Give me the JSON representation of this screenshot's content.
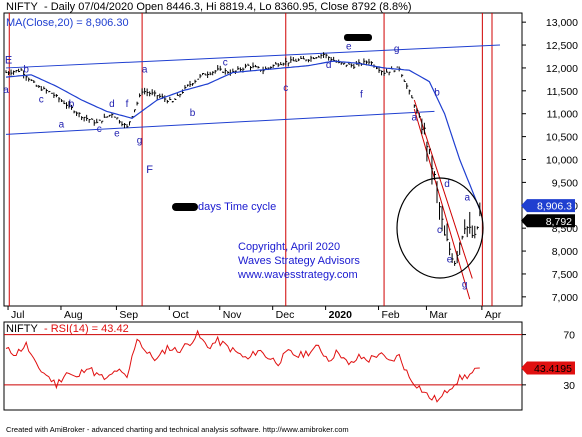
{
  "header": {
    "symbol": "NIFTY",
    "info": " - Daily 07/04/2020 Open 8446.3, Hi 8819.4, Lo 8360.95, Close 8792 (8.8%)",
    "ma_label": "MA(Close,20) = 8,906.30"
  },
  "rsi_header": {
    "symbol": "NIFTY",
    "label": " - RSI(14) = 43.42"
  },
  "annotation": {
    "cycle_text": "days Time cycle",
    "copyright": "Copyright, April 2020",
    "company": "Waves Strategy Advisors",
    "website": "www.wavesstrategy.com"
  },
  "footer": "Created with AmiBroker - advanced charting and technical analysis software. http://www.amibroker.com",
  "colors": {
    "price": "#000000",
    "ma": "#1f3fd0",
    "rsi": "#e01010",
    "cycle": "#d00000",
    "channel": "#1f3fd0",
    "wave_label": "#2020b0",
    "annotation": "#1a1ad0"
  },
  "chart_data": [
    {
      "type": "line",
      "title": "NIFTY - Daily 07/04/2020 Open 8446.3, Hi 8819.4, Lo 8360.95, Close 8792 (8.8%)",
      "ylim": [
        6800,
        13200
      ],
      "y_ticks": [
        7000,
        7500,
        8000,
        8500,
        9000,
        9500,
        10000,
        10500,
        11000,
        11500,
        12000,
        12500,
        13000
      ],
      "y_tick_labels": [
        "7,000",
        "7,500",
        "8,000",
        "8,500",
        "9,000",
        "9,500",
        "10,000",
        "10,500",
        "11,000",
        "11,500",
        "12,000",
        "12,500",
        "13,000"
      ],
      "x_labels": [
        {
          "label": "Jul",
          "index": 2
        },
        {
          "label": "Aug",
          "index": 23
        },
        {
          "label": "Sep",
          "index": 45
        },
        {
          "label": "Oct",
          "index": 66
        },
        {
          "label": "Nov",
          "index": 86
        },
        {
          "label": "Dec",
          "index": 107
        },
        {
          "label": "2020",
          "index": 128
        },
        {
          "label": "Feb",
          "index": 149
        },
        {
          "label": "Mar",
          "index": 168
        },
        {
          "label": "Apr",
          "index": 190
        }
      ],
      "series": [
        {
          "name": "NIFTY",
          "x": [
            0,
            6,
            12,
            18,
            24,
            30,
            36,
            42,
            48,
            54,
            60,
            66,
            72,
            78,
            84,
            90,
            96,
            102,
            108,
            114,
            120,
            126,
            132,
            138,
            144,
            150,
            156,
            162,
            166,
            170,
            174,
            178,
            182,
            186,
            188
          ],
          "y": [
            11900,
            11950,
            11600,
            11450,
            11200,
            10950,
            10800,
            11000,
            10700,
            11500,
            11400,
            11250,
            11600,
            11850,
            11950,
            11900,
            12050,
            11950,
            12100,
            12150,
            12200,
            12300,
            12100,
            12050,
            12150,
            11900,
            12000,
            11200,
            10600,
            9600,
            8300,
            7800,
            8600,
            8250,
            8792
          ]
        },
        {
          "name": "MA(Close,20)",
          "x": [
            0,
            10,
            20,
            30,
            40,
            50,
            60,
            70,
            80,
            90,
            100,
            110,
            120,
            130,
            140,
            150,
            160,
            168,
            174,
            180,
            188
          ],
          "y": [
            11800,
            11850,
            11600,
            11300,
            11050,
            10900,
            11300,
            11500,
            11650,
            11900,
            11950,
            12000,
            12050,
            12150,
            12100,
            12000,
            11950,
            11700,
            11000,
            10000,
            8906.3
          ]
        }
      ],
      "last_values": [
        {
          "label": "8,906.3",
          "value": 8906.3
        },
        {
          "label": "8,792",
          "value": 8792
        }
      ],
      "wave_labels": [
        {
          "text": "E",
          "index": 1,
          "value": 12100
        },
        {
          "text": "a",
          "index": 0,
          "value": 11450
        },
        {
          "text": "b",
          "index": 8,
          "value": 11900
        },
        {
          "text": "c",
          "index": 14,
          "value": 11250
        },
        {
          "text": "a",
          "index": 22,
          "value": 10700
        },
        {
          "text": "b",
          "index": 26,
          "value": 11150
        },
        {
          "text": "c",
          "index": 37,
          "value": 10600
        },
        {
          "text": "d",
          "index": 42,
          "value": 11150
        },
        {
          "text": "e",
          "index": 44,
          "value": 10500
        },
        {
          "text": "f",
          "index": 48,
          "value": 11150
        },
        {
          "text": "g",
          "index": 53,
          "value": 10350
        },
        {
          "text": "F",
          "index": 57,
          "value": 9700
        },
        {
          "text": "a",
          "index": 55,
          "value": 11900
        },
        {
          "text": "b",
          "index": 74,
          "value": 10950
        },
        {
          "text": "c",
          "index": 87,
          "value": 12050
        },
        {
          "text": "c",
          "index": 111,
          "value": 11500
        },
        {
          "text": "d",
          "index": 128,
          "value": 12000
        },
        {
          "text": "e",
          "index": 136,
          "value": 12400
        },
        {
          "text": "f",
          "index": 141,
          "value": 11350
        },
        {
          "text": "g",
          "index": 155,
          "value": 12350
        },
        {
          "text": "a",
          "index": 162,
          "value": 10850
        },
        {
          "text": "b",
          "index": 171,
          "value": 11400
        },
        {
          "text": "c",
          "index": 172,
          "value": 8400
        },
        {
          "text": "d",
          "index": 175,
          "value": 9400
        },
        {
          "text": "e",
          "index": 176,
          "value": 7750
        },
        {
          "text": "a",
          "index": 183,
          "value": 9100
        },
        {
          "text": "g",
          "index": 182,
          "value": 7200
        }
      ]
    },
    {
      "type": "line",
      "title": "NIFTY - RSI(14) = 43.42",
      "ylim": [
        10,
        80
      ],
      "y_ticks": [
        70,
        30
      ],
      "series": [
        {
          "name": "RSI(14)",
          "x": [
            0,
            4,
            8,
            12,
            16,
            20,
            24,
            28,
            32,
            36,
            40,
            44,
            48,
            52,
            56,
            60,
            64,
            68,
            72,
            76,
            80,
            84,
            88,
            92,
            96,
            100,
            104,
            108,
            112,
            116,
            120,
            124,
            128,
            132,
            136,
            140,
            144,
            148,
            152,
            156,
            160,
            164,
            168,
            172,
            176,
            180,
            184,
            188
          ],
          "y": [
            58,
            55,
            62,
            45,
            38,
            30,
            40,
            35,
            45,
            38,
            34,
            42,
            35,
            68,
            55,
            50,
            60,
            57,
            62,
            70,
            60,
            65,
            60,
            55,
            50,
            58,
            52,
            48,
            56,
            53,
            56,
            60,
            50,
            57,
            45,
            52,
            50,
            55,
            48,
            53,
            36,
            28,
            20,
            18,
            28,
            35,
            38,
            43.42
          ]
        }
      ],
      "last_values": [
        {
          "label": "43.4195",
          "value": 43.4195
        }
      ]
    }
  ]
}
